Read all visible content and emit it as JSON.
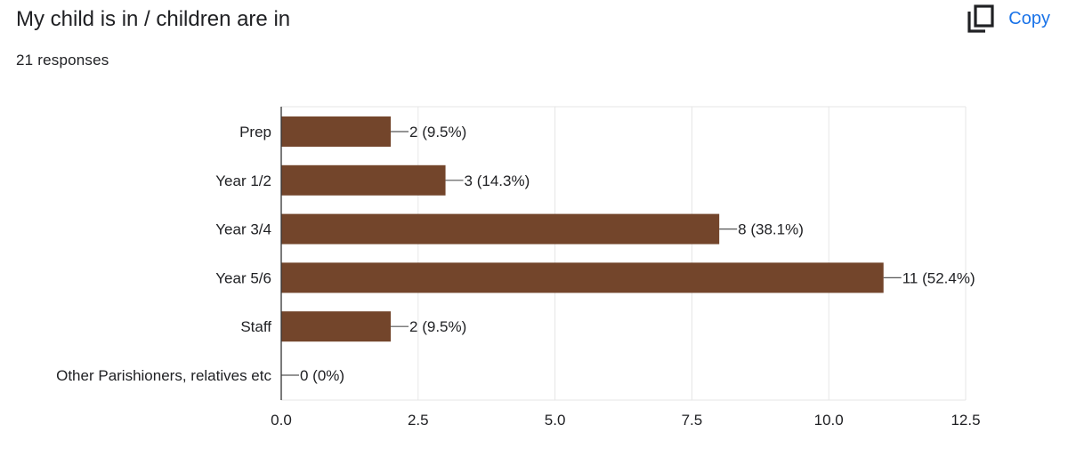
{
  "header": {
    "title": "My child is in / children are in",
    "responses": "21 responses",
    "copy_label": "Copy"
  },
  "colors": {
    "bar": "#73452b",
    "grid": "#e6e6e6",
    "axis": "#333333",
    "text": "#202124",
    "copy": "#1a73e8"
  },
  "chart_data": {
    "type": "bar",
    "orientation": "horizontal",
    "title": "",
    "xlabel": "",
    "ylabel": "",
    "grid": true,
    "xlim": [
      0,
      12.5
    ],
    "x_ticks": [
      "0.0",
      "2.5",
      "5.0",
      "7.5",
      "10.0",
      "12.5"
    ],
    "categories": [
      "Prep",
      "Year 1/2",
      "Year 3/4",
      "Year 5/6",
      "Staff",
      "Other Parishioners, relatives etc"
    ],
    "values": [
      2,
      3,
      8,
      11,
      2,
      0
    ],
    "data_labels": [
      "2 (9.5%)",
      "3 (14.3%)",
      "8 (38.1%)",
      "11 (52.4%)",
      "2 (9.5%)",
      "0 (0%)"
    ]
  }
}
